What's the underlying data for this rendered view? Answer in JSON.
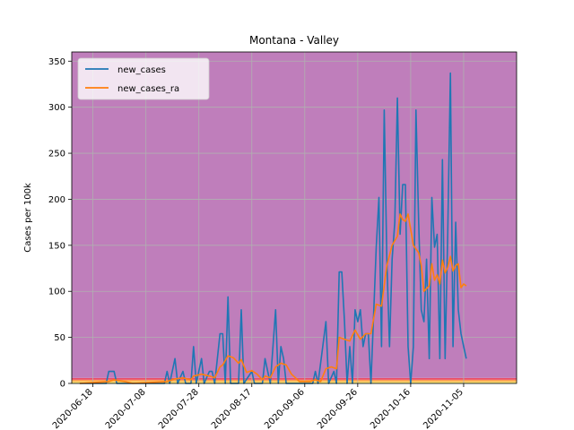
{
  "chart_data": {
    "type": "line",
    "title": "Montana - Valley",
    "xlabel": "",
    "ylabel": "Cases per 100k",
    "ylim": [
      0,
      360
    ],
    "yticks": [
      0,
      50,
      100,
      150,
      200,
      250,
      300,
      350
    ],
    "xlim": [
      "2020-06-10",
      "2020-11-25"
    ],
    "xticks": [
      "2020-06-18",
      "2020-07-08",
      "2020-07-28",
      "2020-08-17",
      "2020-09-06",
      "2020-09-26",
      "2020-10-16",
      "2020-11-05"
    ],
    "grid": true,
    "legend_position": "upper-left",
    "background_bands": [
      {
        "y0": 0,
        "y1": 1,
        "color": "#ffff88"
      },
      {
        "y0": 1,
        "y1": 2.5,
        "color": "#ffd060"
      },
      {
        "y0": 2.5,
        "y1": 4,
        "color": "#ff9a50"
      },
      {
        "y0": 4,
        "y1": 6,
        "color": "#e8506a"
      },
      {
        "y0": 6,
        "y1": 360,
        "color": "#bf7ebb"
      }
    ],
    "series": [
      {
        "name": "new_cases",
        "color": "#1f77b4",
        "points": [
          [
            "2020-06-13",
            0
          ],
          [
            "2020-06-23",
            0
          ],
          [
            "2020-06-24",
            13
          ],
          [
            "2020-06-26",
            13
          ],
          [
            "2020-06-27",
            0
          ],
          [
            "2020-07-15",
            0
          ],
          [
            "2020-07-16",
            13
          ],
          [
            "2020-07-17",
            0
          ],
          [
            "2020-07-19",
            27
          ],
          [
            "2020-07-20",
            0
          ],
          [
            "2020-07-22",
            13
          ],
          [
            "2020-07-23",
            0
          ],
          [
            "2020-07-25",
            0
          ],
          [
            "2020-07-26",
            40
          ],
          [
            "2020-07-27",
            0
          ],
          [
            "2020-07-29",
            27
          ],
          [
            "2020-07-30",
            0
          ],
          [
            "2020-08-01",
            13
          ],
          [
            "2020-08-02",
            13
          ],
          [
            "2020-08-03",
            0
          ],
          [
            "2020-08-05",
            54
          ],
          [
            "2020-08-06",
            54
          ],
          [
            "2020-08-07",
            0
          ],
          [
            "2020-08-08",
            94
          ],
          [
            "2020-08-09",
            0
          ],
          [
            "2020-08-12",
            0
          ],
          [
            "2020-08-13",
            80
          ],
          [
            "2020-08-14",
            0
          ],
          [
            "2020-08-17",
            13
          ],
          [
            "2020-08-18",
            0
          ],
          [
            "2020-08-21",
            0
          ],
          [
            "2020-08-22",
            27
          ],
          [
            "2020-08-23",
            13
          ],
          [
            "2020-08-24",
            0
          ],
          [
            "2020-08-26",
            80
          ],
          [
            "2020-08-27",
            0
          ],
          [
            "2020-08-28",
            40
          ],
          [
            "2020-08-29",
            27
          ],
          [
            "2020-08-30",
            0
          ],
          [
            "2020-09-09",
            0
          ],
          [
            "2020-09-10",
            13
          ],
          [
            "2020-09-11",
            0
          ],
          [
            "2020-09-14",
            67
          ],
          [
            "2020-09-15",
            0
          ],
          [
            "2020-09-17",
            13
          ],
          [
            "2020-09-18",
            0
          ],
          [
            "2020-09-19",
            121
          ],
          [
            "2020-09-20",
            121
          ],
          [
            "2020-09-21",
            67
          ],
          [
            "2020-09-22",
            0
          ],
          [
            "2020-09-23",
            40
          ],
          [
            "2020-09-24",
            0
          ],
          [
            "2020-09-25",
            80
          ],
          [
            "2020-09-26",
            67
          ],
          [
            "2020-09-27",
            80
          ],
          [
            "2020-09-28",
            40
          ],
          [
            "2020-09-29",
            54
          ],
          [
            "2020-09-30",
            54
          ],
          [
            "2020-10-01",
            0
          ],
          [
            "2020-10-03",
            148
          ],
          [
            "2020-10-04",
            202
          ],
          [
            "2020-10-05",
            40
          ],
          [
            "2020-10-06",
            297
          ],
          [
            "2020-10-07",
            135
          ],
          [
            "2020-10-08",
            40
          ],
          [
            "2020-10-09",
            135
          ],
          [
            "2020-10-10",
            175
          ],
          [
            "2020-10-11",
            310
          ],
          [
            "2020-10-12",
            162
          ],
          [
            "2020-10-13",
            216
          ],
          [
            "2020-10-14",
            216
          ],
          [
            "2020-10-15",
            40
          ],
          [
            "2020-10-16",
            0
          ],
          [
            "2020-10-17",
            40
          ],
          [
            "2020-10-18",
            297
          ],
          [
            "2020-10-19",
            175
          ],
          [
            "2020-10-20",
            80
          ],
          [
            "2020-10-21",
            67
          ],
          [
            "2020-10-22",
            135
          ],
          [
            "2020-10-23",
            27
          ],
          [
            "2020-10-24",
            202
          ],
          [
            "2020-10-25",
            148
          ],
          [
            "2020-10-26",
            162
          ],
          [
            "2020-10-27",
            27
          ],
          [
            "2020-10-28",
            243
          ],
          [
            "2020-10-29",
            27
          ],
          [
            "2020-10-30",
            162
          ],
          [
            "2020-10-31",
            337
          ],
          [
            "2020-11-01",
            40
          ],
          [
            "2020-11-02",
            175
          ],
          [
            "2020-11-03",
            80
          ],
          [
            "2020-11-04",
            54
          ],
          [
            "2020-11-05",
            40
          ],
          [
            "2020-11-06",
            27
          ]
        ]
      },
      {
        "name": "new_cases_ra",
        "color": "#ff7f0e",
        "points": [
          [
            "2020-06-13",
            0
          ],
          [
            "2020-06-24",
            2
          ],
          [
            "2020-06-26",
            4
          ],
          [
            "2020-06-30",
            2
          ],
          [
            "2020-07-03",
            0
          ],
          [
            "2020-07-16",
            2
          ],
          [
            "2020-07-19",
            5
          ],
          [
            "2020-07-22",
            6
          ],
          [
            "2020-07-25",
            4
          ],
          [
            "2020-07-26",
            8
          ],
          [
            "2020-07-29",
            10
          ],
          [
            "2020-08-01",
            8
          ],
          [
            "2020-08-03",
            6
          ],
          [
            "2020-08-05",
            18
          ],
          [
            "2020-08-06",
            20
          ],
          [
            "2020-08-08",
            30
          ],
          [
            "2020-08-10",
            28
          ],
          [
            "2020-08-12",
            22
          ],
          [
            "2020-08-13",
            26
          ],
          [
            "2020-08-15",
            12
          ],
          [
            "2020-08-17",
            14
          ],
          [
            "2020-08-19",
            10
          ],
          [
            "2020-08-21",
            4
          ],
          [
            "2020-08-22",
            8
          ],
          [
            "2020-08-24",
            6
          ],
          [
            "2020-08-26",
            18
          ],
          [
            "2020-08-28",
            22
          ],
          [
            "2020-08-30",
            20
          ],
          [
            "2020-09-01",
            10
          ],
          [
            "2020-09-04",
            2
          ],
          [
            "2020-09-08",
            2
          ],
          [
            "2020-09-10",
            4
          ],
          [
            "2020-09-12",
            2
          ],
          [
            "2020-09-14",
            16
          ],
          [
            "2020-09-16",
            18
          ],
          [
            "2020-09-18",
            16
          ],
          [
            "2020-09-19",
            50
          ],
          [
            "2020-09-21",
            48
          ],
          [
            "2020-09-23",
            46
          ],
          [
            "2020-09-25",
            58
          ],
          [
            "2020-09-27",
            48
          ],
          [
            "2020-09-29",
            54
          ],
          [
            "2020-10-01",
            54
          ],
          [
            "2020-10-03",
            86
          ],
          [
            "2020-10-05",
            84
          ],
          [
            "2020-10-07",
            128
          ],
          [
            "2020-10-09",
            150
          ],
          [
            "2020-10-11",
            160
          ],
          [
            "2020-10-12",
            184
          ],
          [
            "2020-10-13",
            178
          ],
          [
            "2020-10-14",
            176
          ],
          [
            "2020-10-15",
            184
          ],
          [
            "2020-10-17",
            150
          ],
          [
            "2020-10-19",
            142
          ],
          [
            "2020-10-20",
            128
          ],
          [
            "2020-10-21",
            100
          ],
          [
            "2020-10-23",
            106
          ],
          [
            "2020-10-24",
            130
          ],
          [
            "2020-10-25",
            112
          ],
          [
            "2020-10-26",
            118
          ],
          [
            "2020-10-27",
            108
          ],
          [
            "2020-10-28",
            134
          ],
          [
            "2020-10-29",
            120
          ],
          [
            "2020-10-30",
            126
          ],
          [
            "2020-10-31",
            138
          ],
          [
            "2020-11-01",
            122
          ],
          [
            "2020-11-02",
            128
          ],
          [
            "2020-11-03",
            130
          ],
          [
            "2020-11-04",
            104
          ],
          [
            "2020-11-05",
            108
          ],
          [
            "2020-11-06",
            106
          ]
        ]
      }
    ]
  }
}
